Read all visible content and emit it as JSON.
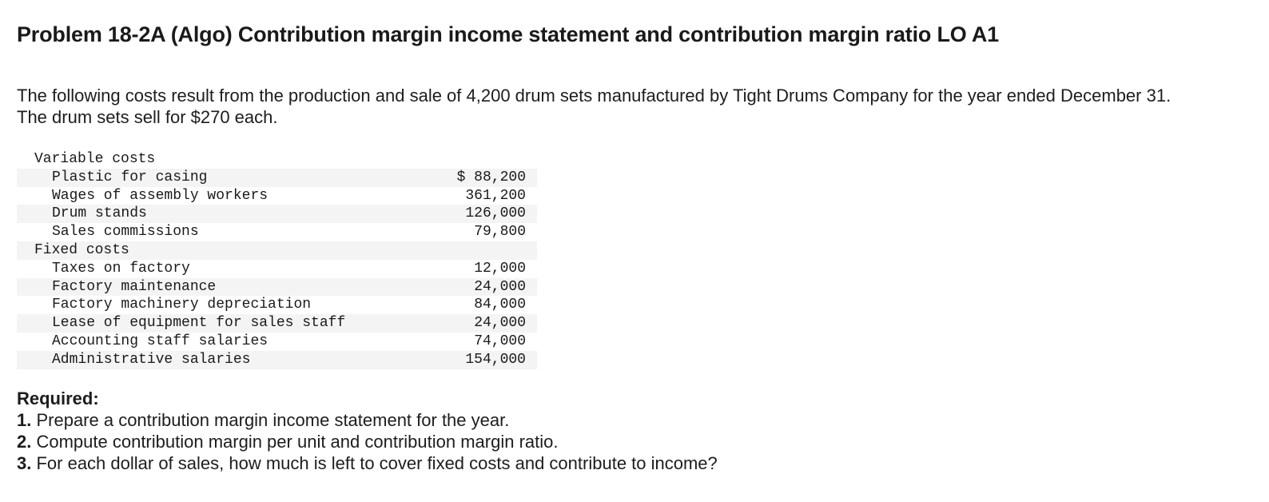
{
  "title": "Problem 18-2A (Algo) Contribution margin income statement and contribution margin ratio LO A1",
  "intro": "The following costs result from the production and sale of 4,200 drum sets manufactured by Tight Drums Company for the year ended December 31. The drum sets sell for $270 each.",
  "cost_table": {
    "rows": [
      {
        "type": "section",
        "label": "Variable costs",
        "amount": ""
      },
      {
        "type": "item",
        "label": "Plastic for casing",
        "amount": "$ 88,200"
      },
      {
        "type": "item",
        "label": "Wages of assembly workers",
        "amount": "361,200"
      },
      {
        "type": "item",
        "label": "Drum stands",
        "amount": "126,000"
      },
      {
        "type": "item",
        "label": "Sales commissions",
        "amount": "79,800"
      },
      {
        "type": "section",
        "label": "Fixed costs",
        "amount": ""
      },
      {
        "type": "item",
        "label": "Taxes on factory",
        "amount": "12,000"
      },
      {
        "type": "item",
        "label": "Factory maintenance",
        "amount": "24,000"
      },
      {
        "type": "item",
        "label": "Factory machinery depreciation",
        "amount": "84,000"
      },
      {
        "type": "item",
        "label": "Lease of equipment for sales staff",
        "amount": "24,000"
      },
      {
        "type": "item",
        "label": "Accounting staff salaries",
        "amount": "74,000"
      },
      {
        "type": "item",
        "label": "Administrative salaries",
        "amount": "154,000"
      }
    ]
  },
  "required": {
    "heading": "Required:",
    "items": [
      {
        "num": "1.",
        "text": " Prepare a contribution margin income statement for the year."
      },
      {
        "num": "2.",
        "text": " Compute contribution margin per unit and contribution margin ratio."
      },
      {
        "num": "3.",
        "text": " For each dollar of sales, how much is left to cover fixed costs and contribute to income?"
      }
    ]
  }
}
